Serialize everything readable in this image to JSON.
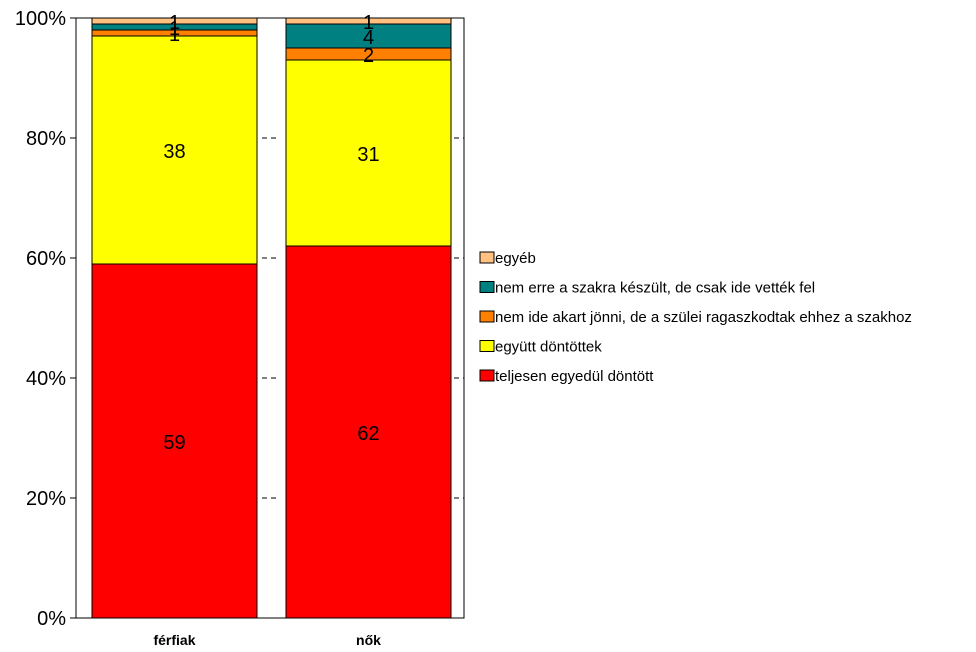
{
  "chart_data": {
    "type": "bar",
    "stacked": true,
    "normalized": true,
    "categories": [
      "férfiak",
      "nők"
    ],
    "series": [
      {
        "name": "teljesen egyedül döntött",
        "values": [
          59,
          62
        ],
        "color": "#ff0000"
      },
      {
        "name": "együtt döntöttek",
        "values": [
          38,
          31
        ],
        "color": "#ffff00"
      },
      {
        "name": "nem ide akart jönni, de a szülei ragaszkodtak ehhez a szakhoz",
        "values": [
          1,
          2
        ],
        "color": "#ff8000"
      },
      {
        "name": "nem erre a szakra készült, de csak ide vették fel",
        "values": [
          1,
          4
        ],
        "color": "#008080"
      },
      {
        "name": "egyéb",
        "values": [
          1,
          1
        ],
        "color": "#ffc080"
      }
    ],
    "yticks": [
      "0%",
      "20%",
      "40%",
      "60%",
      "80%",
      "100%"
    ],
    "ylim": [
      0,
      100
    ],
    "legend_position": "right",
    "title": "",
    "xlabel": "",
    "ylabel": ""
  }
}
